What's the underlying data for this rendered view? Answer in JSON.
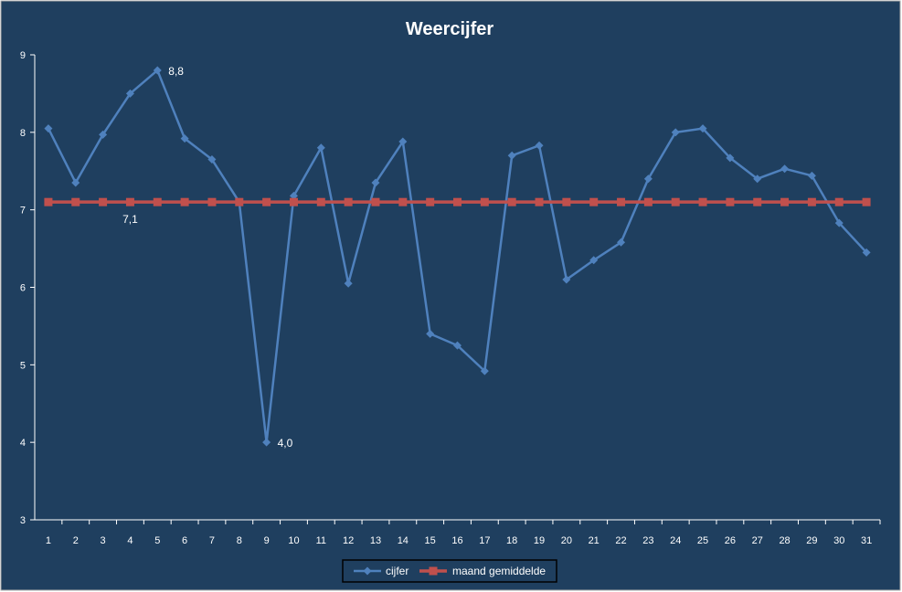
{
  "chart_data": {
    "type": "line",
    "title": "Weercijfer",
    "xlabel": "",
    "ylabel": "",
    "ylim": [
      3,
      9
    ],
    "yticks": [
      "3",
      "4",
      "5",
      "6",
      "7",
      "8",
      "9"
    ],
    "categories": [
      "1",
      "2",
      "3",
      "4",
      "5",
      "6",
      "7",
      "8",
      "9",
      "10",
      "11",
      "12",
      "13",
      "14",
      "15",
      "16",
      "17",
      "18",
      "19",
      "20",
      "21",
      "22",
      "23",
      "24",
      "25",
      "26",
      "27",
      "28",
      "29",
      "30",
      "31"
    ],
    "series": [
      {
        "name": "cijfer",
        "color": "#4f81bd",
        "marker": "diamond",
        "values": [
          8.05,
          7.35,
          7.97,
          8.5,
          8.8,
          7.92,
          7.65,
          7.1,
          4.0,
          7.18,
          7.8,
          6.05,
          7.35,
          7.88,
          5.4,
          5.25,
          4.92,
          7.7,
          7.83,
          6.1,
          6.35,
          6.58,
          7.4,
          8.0,
          8.05,
          7.67,
          7.4,
          7.53,
          7.44,
          6.83,
          6.45
        ]
      },
      {
        "name": "maand gemiddelde",
        "color": "#c0504d",
        "marker": "square",
        "values": [
          7.1,
          7.1,
          7.1,
          7.1,
          7.1,
          7.1,
          7.1,
          7.1,
          7.1,
          7.1,
          7.1,
          7.1,
          7.1,
          7.1,
          7.1,
          7.1,
          7.1,
          7.1,
          7.1,
          7.1,
          7.1,
          7.1,
          7.1,
          7.1,
          7.1,
          7.1,
          7.1,
          7.1,
          7.1,
          7.1,
          7.1
        ]
      }
    ],
    "data_labels": [
      {
        "series": 0,
        "index": 4,
        "text": "8,8"
      },
      {
        "series": 0,
        "index": 8,
        "text": "4,0"
      },
      {
        "series": 1,
        "index": 3,
        "text": "7,1"
      }
    ],
    "legend": "bottom",
    "background_color": "#1f3f5f",
    "grid": false
  }
}
